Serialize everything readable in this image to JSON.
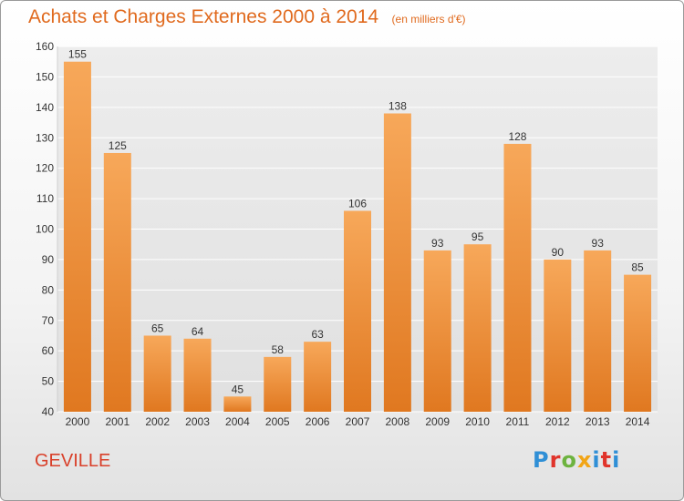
{
  "header": {
    "title": "Achats et Charges Externes 2000 à 2014",
    "subtitle": "(en milliers d'€)"
  },
  "place": "GEVILLE",
  "logo": {
    "text": "Proxiti",
    "colors": [
      "#2f8fd6",
      "#e0342b",
      "#6db33f",
      "#f2a516",
      "#2f8fd6",
      "#e0342b",
      "#2f8fd6"
    ]
  },
  "colors": {
    "bar_light": "#f7a85a",
    "bar_dark": "#e07820",
    "title": "#e06a1e",
    "place": "#d9402a"
  },
  "chart_data": {
    "type": "bar",
    "categories": [
      "2000",
      "2001",
      "2002",
      "2003",
      "2004",
      "2005",
      "2006",
      "2007",
      "2008",
      "2009",
      "2010",
      "2011",
      "2012",
      "2013",
      "2014"
    ],
    "values": [
      155,
      125,
      65,
      64,
      45,
      58,
      63,
      106,
      138,
      93,
      95,
      128,
      90,
      93,
      85
    ],
    "ylim": [
      40,
      160
    ],
    "yticks": [
      40,
      50,
      60,
      70,
      80,
      90,
      100,
      110,
      120,
      130,
      140,
      150,
      160
    ],
    "grid": true,
    "xlabel": "",
    "ylabel": ""
  }
}
